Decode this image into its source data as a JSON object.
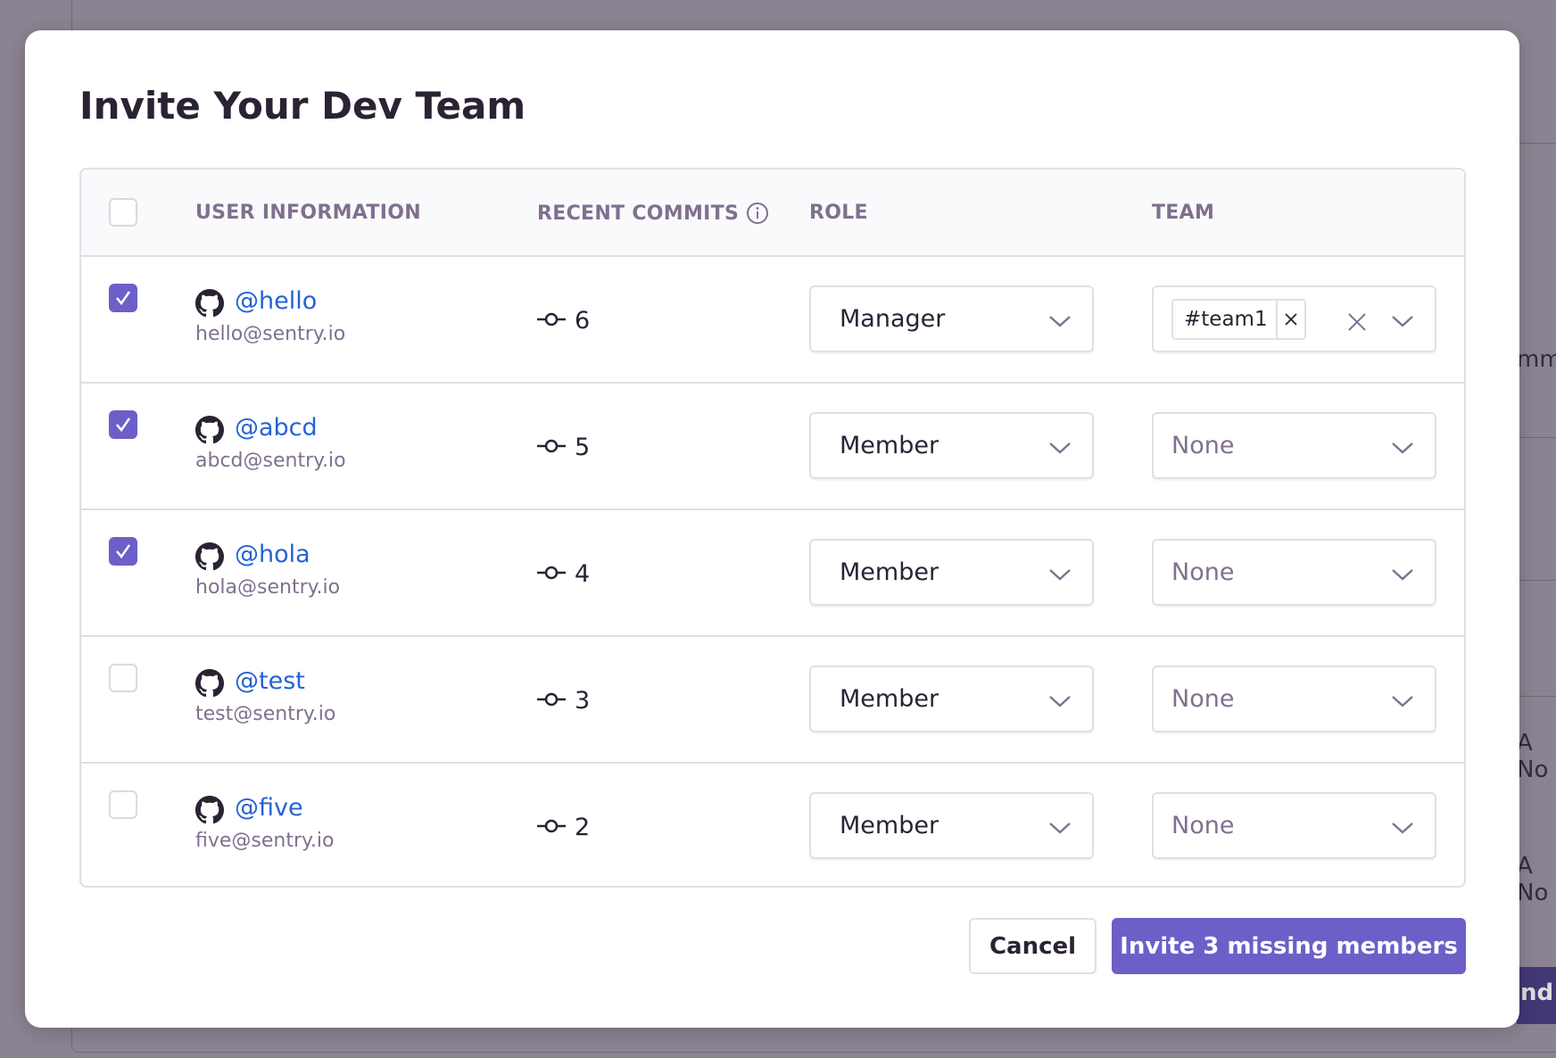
{
  "background": {
    "fragments": [
      "mmit",
      "A No",
      "A No",
      "nd"
    ]
  },
  "modal": {
    "title": "Invite Your Dev Team",
    "headers": {
      "user": "USER INFORMATION",
      "commits": "RECENT COMMITS",
      "role": "ROLE",
      "team": "TEAM"
    },
    "rows": [
      {
        "checked": true,
        "handle": "@hello",
        "email": "hello@sentry.io",
        "commits": "6",
        "role": "Manager",
        "team": "#team1"
      },
      {
        "checked": true,
        "handle": "@abcd",
        "email": "abcd@sentry.io",
        "commits": "5",
        "role": "Member",
        "team": "None"
      },
      {
        "checked": true,
        "handle": "@hola",
        "email": "hola@sentry.io",
        "commits": "4",
        "role": "Member",
        "team": "None"
      },
      {
        "checked": false,
        "handle": "@test",
        "email": "test@sentry.io",
        "commits": "3",
        "role": "Member",
        "team": "None"
      },
      {
        "checked": false,
        "handle": "@five",
        "email": "five@sentry.io",
        "commits": "2",
        "role": "Member",
        "team": "None"
      }
    ],
    "cancel_label": "Cancel",
    "invite_label": "Invite 3 missing members"
  },
  "colors": {
    "accent": "#6c5fc7",
    "link": "#2562d4"
  }
}
